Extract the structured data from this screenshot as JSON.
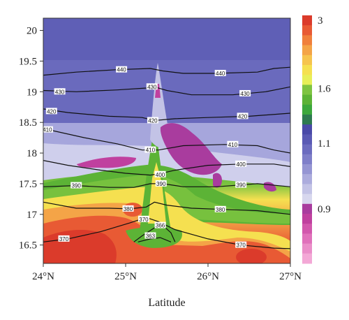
{
  "chart_data": {
    "type": "heatmap",
    "title": "",
    "xlabel": "Latitude",
    "ylabel": "",
    "xlim": [
      24,
      27
    ],
    "ylim": [
      16.2,
      20.2
    ],
    "x_ticks": [
      {
        "value": 24,
        "label": "24°N"
      },
      {
        "value": 25,
        "label": "25°N"
      },
      {
        "value": 26,
        "label": "26°N"
      },
      {
        "value": 27,
        "label": "27°N"
      }
    ],
    "y_ticks": [
      {
        "value": 16.5,
        "label": "16.5"
      },
      {
        "value": 17,
        "label": "17"
      },
      {
        "value": 17.5,
        "label": "17.5"
      },
      {
        "value": 18,
        "label": "18"
      },
      {
        "value": 18.5,
        "label": "18.5"
      },
      {
        "value": 19,
        "label": "19"
      },
      {
        "value": 19.5,
        "label": "19.5"
      },
      {
        "value": 20,
        "label": "20"
      }
    ],
    "colorbar": {
      "labels": [
        {
          "value": 3,
          "label": "3"
        },
        {
          "value": 1.6,
          "label": "1.6"
        },
        {
          "value": 1.1,
          "label": "1.1"
        },
        {
          "value": 0.9,
          "label": "0.9"
        }
      ],
      "colors": [
        "#db3b2b",
        "#e85a34",
        "#f0803c",
        "#f4a447",
        "#f6c44e",
        "#f5e050",
        "#e7ef58",
        "#7ec441",
        "#5cb336",
        "#3ca83c",
        "#2e7a50",
        "#4a4aa8",
        "#5a5ab4",
        "#6c6cbf",
        "#7f7fc9",
        "#9595d3",
        "#acacdd",
        "#c3c3e6",
        "#d7d7ee",
        "#a93c9e",
        "#c0409f",
        "#d257ad",
        "#e071bb",
        "#ea8ec9",
        "#f3a8d6"
      ]
    },
    "contours": [
      {
        "label": "440",
        "points": [
          [
            24.0,
            19.27
          ],
          [
            24.4,
            19.32
          ],
          [
            24.9,
            19.36
          ],
          [
            25.3,
            19.38
          ],
          [
            25.45,
            19.34
          ],
          [
            25.7,
            19.3
          ],
          [
            26.1,
            19.3
          ],
          [
            26.6,
            19.32
          ],
          [
            26.8,
            19.38
          ],
          [
            27.0,
            19.4
          ]
        ],
        "labels_at": [
          [
            24.95,
            19.36
          ],
          [
            26.15,
            19.3
          ]
        ]
      },
      {
        "label": "430",
        "points": [
          [
            24.0,
            19.02
          ],
          [
            24.4,
            19.0
          ],
          [
            24.9,
            19.03
          ],
          [
            25.25,
            19.06
          ],
          [
            25.35,
            19.08
          ],
          [
            25.5,
            19.02
          ],
          [
            25.8,
            18.95
          ],
          [
            26.3,
            18.95
          ],
          [
            26.7,
            19.0
          ],
          [
            27.0,
            19.08
          ]
        ],
        "labels_at": [
          [
            24.2,
            19.0
          ],
          [
            25.32,
            19.08
          ],
          [
            26.45,
            18.97
          ]
        ]
      },
      {
        "label": "420",
        "points": [
          [
            24.0,
            18.72
          ],
          [
            24.3,
            18.66
          ],
          [
            24.8,
            18.6
          ],
          [
            25.2,
            18.58
          ],
          [
            25.35,
            18.53
          ],
          [
            25.6,
            18.56
          ],
          [
            26.0,
            18.58
          ],
          [
            26.5,
            18.6
          ],
          [
            27.0,
            18.65
          ]
        ],
        "labels_at": [
          [
            24.1,
            18.68
          ],
          [
            25.33,
            18.53
          ],
          [
            26.42,
            18.6
          ]
        ]
      },
      {
        "label": "410",
        "points": [
          [
            24.0,
            18.4
          ],
          [
            24.5,
            18.25
          ],
          [
            24.9,
            18.15
          ],
          [
            25.2,
            18.05
          ],
          [
            25.4,
            18.05
          ],
          [
            25.7,
            18.12
          ],
          [
            26.2,
            18.14
          ],
          [
            26.6,
            18.12
          ],
          [
            26.8,
            18.05
          ],
          [
            27.0,
            18.0
          ]
        ],
        "labels_at": [
          [
            24.05,
            18.38
          ],
          [
            25.3,
            18.05
          ],
          [
            26.3,
            18.14
          ]
        ]
      },
      {
        "label": "400",
        "points": [
          [
            24.0,
            17.88
          ],
          [
            24.3,
            17.8
          ],
          [
            24.7,
            17.72
          ],
          [
            25.0,
            17.67
          ],
          [
            25.3,
            17.64
          ],
          [
            25.4,
            17.66
          ],
          [
            25.6,
            17.72
          ],
          [
            26.0,
            17.8
          ],
          [
            26.4,
            17.82
          ],
          [
            26.8,
            17.82
          ],
          [
            27.0,
            17.78
          ]
        ],
        "labels_at": [
          [
            25.42,
            17.65
          ],
          [
            26.4,
            17.82
          ]
        ]
      },
      {
        "label": "390",
        "points": [
          [
            24.0,
            17.45
          ],
          [
            24.4,
            17.47
          ],
          [
            24.8,
            17.44
          ],
          [
            25.1,
            17.44
          ],
          [
            25.3,
            17.5
          ],
          [
            25.45,
            17.5
          ],
          [
            25.7,
            17.45
          ],
          [
            26.1,
            17.45
          ],
          [
            26.6,
            17.5
          ],
          [
            27.0,
            17.45
          ]
        ],
        "labels_at": [
          [
            24.4,
            17.47
          ],
          [
            25.43,
            17.5
          ],
          [
            26.4,
            17.48
          ]
        ]
      },
      {
        "label": "380",
        "points": [
          [
            24.0,
            17.2
          ],
          [
            24.4,
            17.1
          ],
          [
            24.8,
            17.1
          ],
          [
            25.05,
            17.09
          ],
          [
            25.25,
            17.12
          ],
          [
            25.35,
            17.2
          ],
          [
            25.5,
            17.15
          ],
          [
            25.8,
            17.1
          ],
          [
            26.2,
            17.08
          ],
          [
            26.6,
            17.06
          ],
          [
            27.0,
            17.0
          ]
        ],
        "labels_at": [
          [
            25.03,
            17.09
          ],
          [
            26.15,
            17.08
          ]
        ]
      },
      {
        "label": "370",
        "points": [
          [
            24.0,
            16.55
          ],
          [
            24.3,
            16.6
          ],
          [
            24.7,
            16.72
          ],
          [
            25.05,
            16.86
          ],
          [
            25.25,
            16.95
          ],
          [
            25.4,
            16.88
          ],
          [
            25.6,
            16.75
          ],
          [
            26.0,
            16.6
          ],
          [
            26.4,
            16.5
          ],
          [
            26.8,
            16.45
          ],
          [
            27.0,
            16.44
          ]
        ],
        "labels_at": [
          [
            24.25,
            16.6
          ],
          [
            25.22,
            16.92
          ],
          [
            26.4,
            16.5
          ]
        ]
      },
      {
        "label": "366",
        "points": [
          [
            25.1,
            16.55
          ],
          [
            25.2,
            16.65
          ],
          [
            25.35,
            16.78
          ],
          [
            25.45,
            16.82
          ],
          [
            25.55,
            16.7
          ],
          [
            25.6,
            16.55
          ]
        ],
        "labels_at": [
          [
            25.42,
            16.82
          ]
        ]
      },
      {
        "label": "363",
        "points": [
          [
            25.15,
            16.55
          ],
          [
            25.3,
            16.6
          ],
          [
            25.42,
            16.62
          ],
          [
            25.55,
            16.55
          ]
        ],
        "labels_at": [
          [
            25.3,
            16.65
          ]
        ]
      }
    ]
  }
}
